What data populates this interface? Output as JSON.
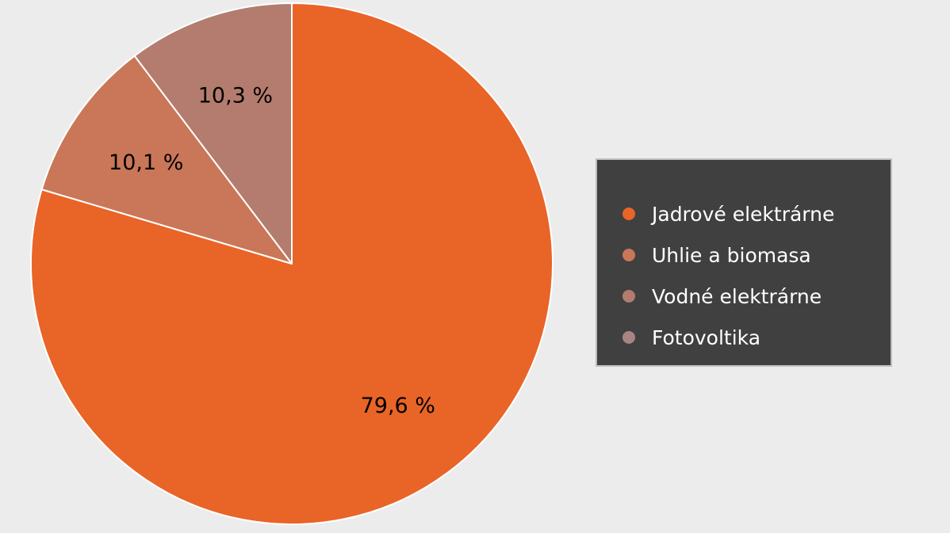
{
  "chart_data": {
    "type": "pie",
    "title": "",
    "start_angle_deg": 0,
    "direction": "clockwise",
    "colors": {
      "background": "#ececec",
      "slice_border": "#ffffff",
      "legend_background": "#404040",
      "legend_border": "#bdbdbd",
      "legend_text": "#ffffff",
      "label_text": "#000000"
    },
    "slices": [
      {
        "name": "Jadrové elektrárne",
        "value": 79.6,
        "label": "79,6 %",
        "color": "#e96427"
      },
      {
        "name": "Uhlie a biomasa",
        "value": 10.1,
        "label": "10,1 %",
        "color": "#c97758"
      },
      {
        "name": "Vodné elektrárne",
        "value": 10.3,
        "label": "10,3 %",
        "color": "#b47c6e"
      },
      {
        "name": "Fotovoltika",
        "value": 0,
        "label": "",
        "color": "#a88485"
      }
    ],
    "legend": {
      "position": "right",
      "entries": [
        "Jadrové elektrárne",
        "Uhlie a biomasa",
        "Vodné elektrárne",
        "Fotovoltika"
      ]
    }
  }
}
